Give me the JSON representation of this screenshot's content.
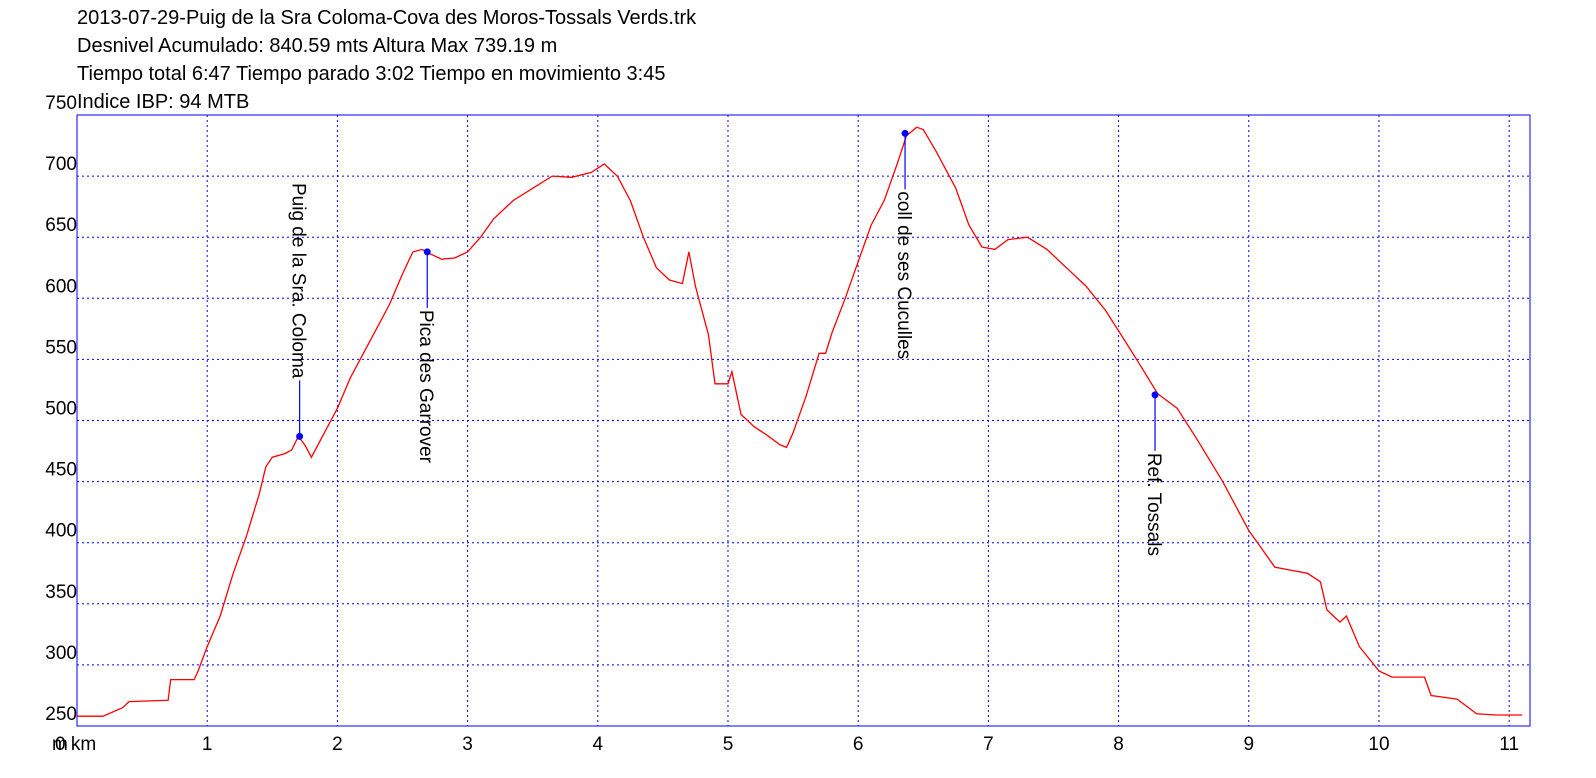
{
  "chart_data": {
    "type": "line",
    "title_lines": [
      "2013-07-29-Puig de la Sra Coloma-Cova des Moros-Tossals Verds.trk",
      "Desnivel Acumulado: 840.59 mts  Altura Max 739.19 m",
      "Tiempo total 6:47 Tiempo parado 3:02 Tiempo en movimiento 3:45",
      "Indice IBP: 94 MTB"
    ],
    "y_unit": "m",
    "xlim": [
      0,
      11.16
    ],
    "ylim": [
      250,
      750
    ],
    "xticks": [
      {
        "value": 0,
        "label": "0 km"
      },
      1,
      2,
      3,
      4,
      5,
      6,
      7,
      8,
      9,
      10,
      11
    ],
    "yticks": [
      250,
      300,
      350,
      400,
      450,
      500,
      550,
      600,
      650,
      700,
      750
    ],
    "grid": true,
    "frame_color": "#0000ff",
    "series": [
      {
        "color": "#ff0000",
        "x": [
          0,
          0.2,
          0.35,
          0.4,
          0.7,
          0.72,
          0.9,
          0.93,
          1.0,
          1.1,
          1.2,
          1.3,
          1.4,
          1.45,
          1.5,
          1.6,
          1.65,
          1.7,
          1.75,
          1.8,
          1.9,
          2.0,
          2.1,
          2.2,
          2.3,
          2.4,
          2.5,
          2.58,
          2.65,
          2.7,
          2.8,
          2.9,
          3.0,
          3.1,
          3.2,
          3.35,
          3.5,
          3.65,
          3.8,
          3.95,
          4.05,
          4.15,
          4.25,
          4.35,
          4.45,
          4.55,
          4.65,
          4.7,
          4.75,
          4.85,
          4.9,
          5.0,
          5.03,
          5.1,
          5.2,
          5.3,
          5.4,
          5.45,
          5.5,
          5.6,
          5.7,
          5.75,
          5.8,
          5.9,
          6.0,
          6.1,
          6.2,
          6.3,
          6.37,
          6.45,
          6.5,
          6.6,
          6.75,
          6.85,
          6.95,
          7.05,
          7.15,
          7.3,
          7.45,
          7.6,
          7.75,
          7.9,
          8.05,
          8.15,
          8.3,
          8.45,
          8.6,
          8.8,
          9.0,
          9.1,
          9.2,
          9.3,
          9.45,
          9.55,
          9.6,
          9.7,
          9.75,
          9.85,
          10.0,
          10.1,
          10.35,
          10.4,
          10.6,
          10.75,
          10.9,
          11.1
        ],
        "values": [
          258,
          258,
          265,
          270,
          271,
          288,
          288,
          295,
          315,
          340,
          375,
          405,
          440,
          462,
          470,
          473,
          476,
          487,
          480,
          470,
          490,
          510,
          535,
          555,
          575,
          595,
          620,
          638,
          640,
          637,
          632,
          633,
          638,
          650,
          665,
          680,
          690,
          700,
          699,
          703,
          710,
          700,
          680,
          650,
          625,
          615,
          612,
          638,
          610,
          570,
          530,
          530,
          540,
          505,
          495,
          488,
          480,
          478,
          490,
          520,
          555,
          555,
          572,
          600,
          630,
          660,
          680,
          710,
          733,
          740,
          738,
          720,
          690,
          660,
          642,
          640,
          648,
          650,
          640,
          625,
          610,
          590,
          565,
          548,
          522,
          510,
          485,
          450,
          410,
          395,
          380,
          378,
          375,
          368,
          345,
          335,
          340,
          315,
          295,
          290,
          290,
          275,
          272,
          260,
          259,
          259
        ]
      }
    ],
    "annotations": [
      {
        "label": "Puig de la Sra. Coloma",
        "x": 1.71,
        "y": 487,
        "position": "above"
      },
      {
        "label": "Pica des Garrover",
        "x": 2.69,
        "y": 638,
        "position": "below"
      },
      {
        "label": "coll de ses Cuculles",
        "x": 6.36,
        "y": 735,
        "position": "below"
      },
      {
        "label": "Ref. Tossals",
        "x": 8.28,
        "y": 521,
        "position": "below"
      }
    ],
    "marker_color": "#0000ff"
  }
}
